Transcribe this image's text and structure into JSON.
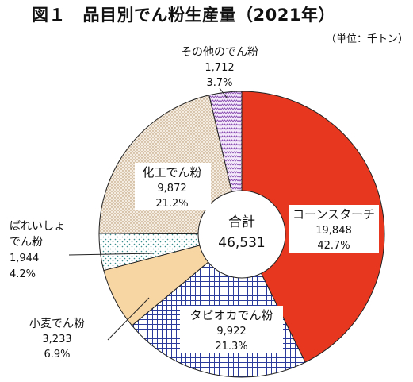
{
  "chart_data": {
    "type": "pie",
    "title": "図１　品目別でん粉生産量（2021年）",
    "unit": "（単位：千トン）",
    "center": {
      "label": "合計",
      "value": "46,531"
    },
    "slices": [
      {
        "name": "コーンスターチ",
        "value_text": "19,848",
        "pct_text": "42.7%",
        "value": 19848,
        "pct": 42.7,
        "color": "#e8371f",
        "pattern": "solid"
      },
      {
        "name": "タピオカでん粉",
        "value_text": "9,922",
        "pct_text": "21.3%",
        "value": 9922,
        "pct": 21.3,
        "color": "#2a3b9c",
        "pattern": "grid"
      },
      {
        "name": "小麦でん粉",
        "value_text": "3,233",
        "pct_text": "6.9%",
        "value": 3233,
        "pct": 6.9,
        "color": "#f8d6a4",
        "pattern": "solid"
      },
      {
        "name": "ばれいしょ\nでん粉",
        "value_text": "1,944",
        "pct_text": "4.2%",
        "value": 1944,
        "pct": 4.2,
        "color": "#3a8f8f",
        "pattern": "dots"
      },
      {
        "name": "化工でん粉",
        "value_text": "9,872",
        "pct_text": "21.2%",
        "value": 9872,
        "pct": 21.2,
        "color": "#b08a60",
        "pattern": "dots-dense"
      },
      {
        "name": "その他のでん粉",
        "value_text": "1,712",
        "pct_text": "3.7%",
        "value": 1712,
        "pct": 3.7,
        "color": "#8a4fb0",
        "pattern": "zigzag"
      }
    ]
  }
}
